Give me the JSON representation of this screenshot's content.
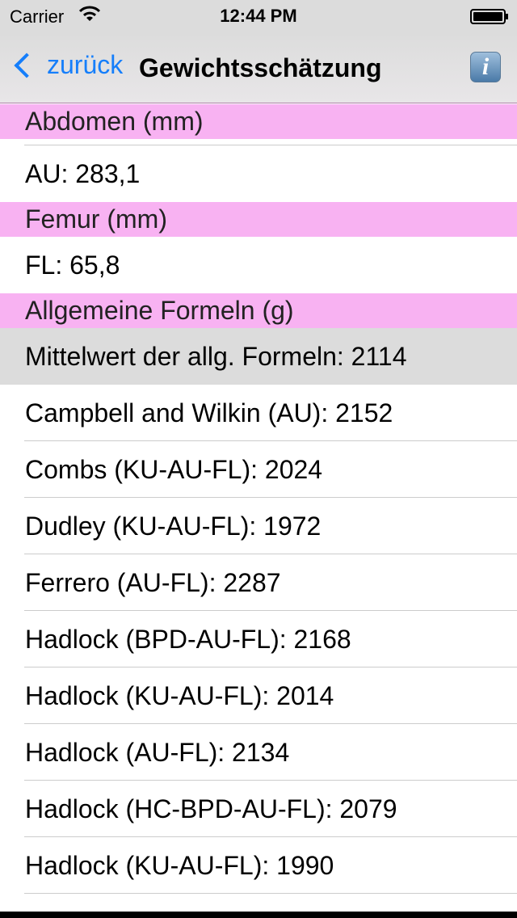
{
  "status": {
    "carrier": "Carrier",
    "time": "12:44 PM"
  },
  "nav": {
    "back": "zurück",
    "title": "Gewichtsschätzung",
    "info_icon": "i"
  },
  "sections": {
    "abdomen": {
      "header": "Abdomen (mm)",
      "value": "AU: 283,1"
    },
    "femur": {
      "header": "Femur (mm)",
      "value": "FL: 65,8"
    },
    "formulas": {
      "header": "Allgemeine Formeln (g)",
      "mean": "Mittelwert der allg. Formeln: 2114",
      "items": [
        "Campbell and Wilkin (AU): 2152",
        "Combs (KU-AU-FL): 2024",
        "Dudley (KU-AU-FL): 1972",
        "Ferrero (AU-FL): 2287",
        "Hadlock (BPD-AU-FL): 2168",
        "Hadlock (KU-AU-FL): 2014",
        "Hadlock (AU-FL): 2134",
        "Hadlock (HC-BPD-AU-FL): 2079",
        "Hadlock (KU-AU-FL): 1990"
      ]
    }
  },
  "colors": {
    "section_header": "#f8b2f2",
    "accent": "#157efb",
    "highlight_row": "#dcdcdc"
  }
}
